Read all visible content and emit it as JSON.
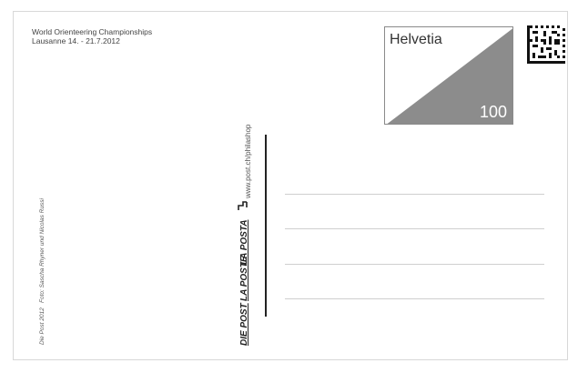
{
  "event": {
    "title": "World Orienteering Championships",
    "dates": "Lausanne 14. - 21.7.2012"
  },
  "stamp": {
    "country": "Helvetia",
    "value": "100",
    "fill_color": "#8c8c8c"
  },
  "credits": {
    "copyright": "Die Post 2012",
    "photo": "Foto: Sascha Rhyner und Nicolas Russi"
  },
  "brand": {
    "die_post": "DIE POST",
    "la_poste": "LA POSTE",
    "la_posta": "LA POSTA",
    "mark_icon": "post-horn-icon"
  },
  "shop": {
    "url": "www.post.ch/philashop"
  },
  "address": {
    "line_count": 4
  }
}
